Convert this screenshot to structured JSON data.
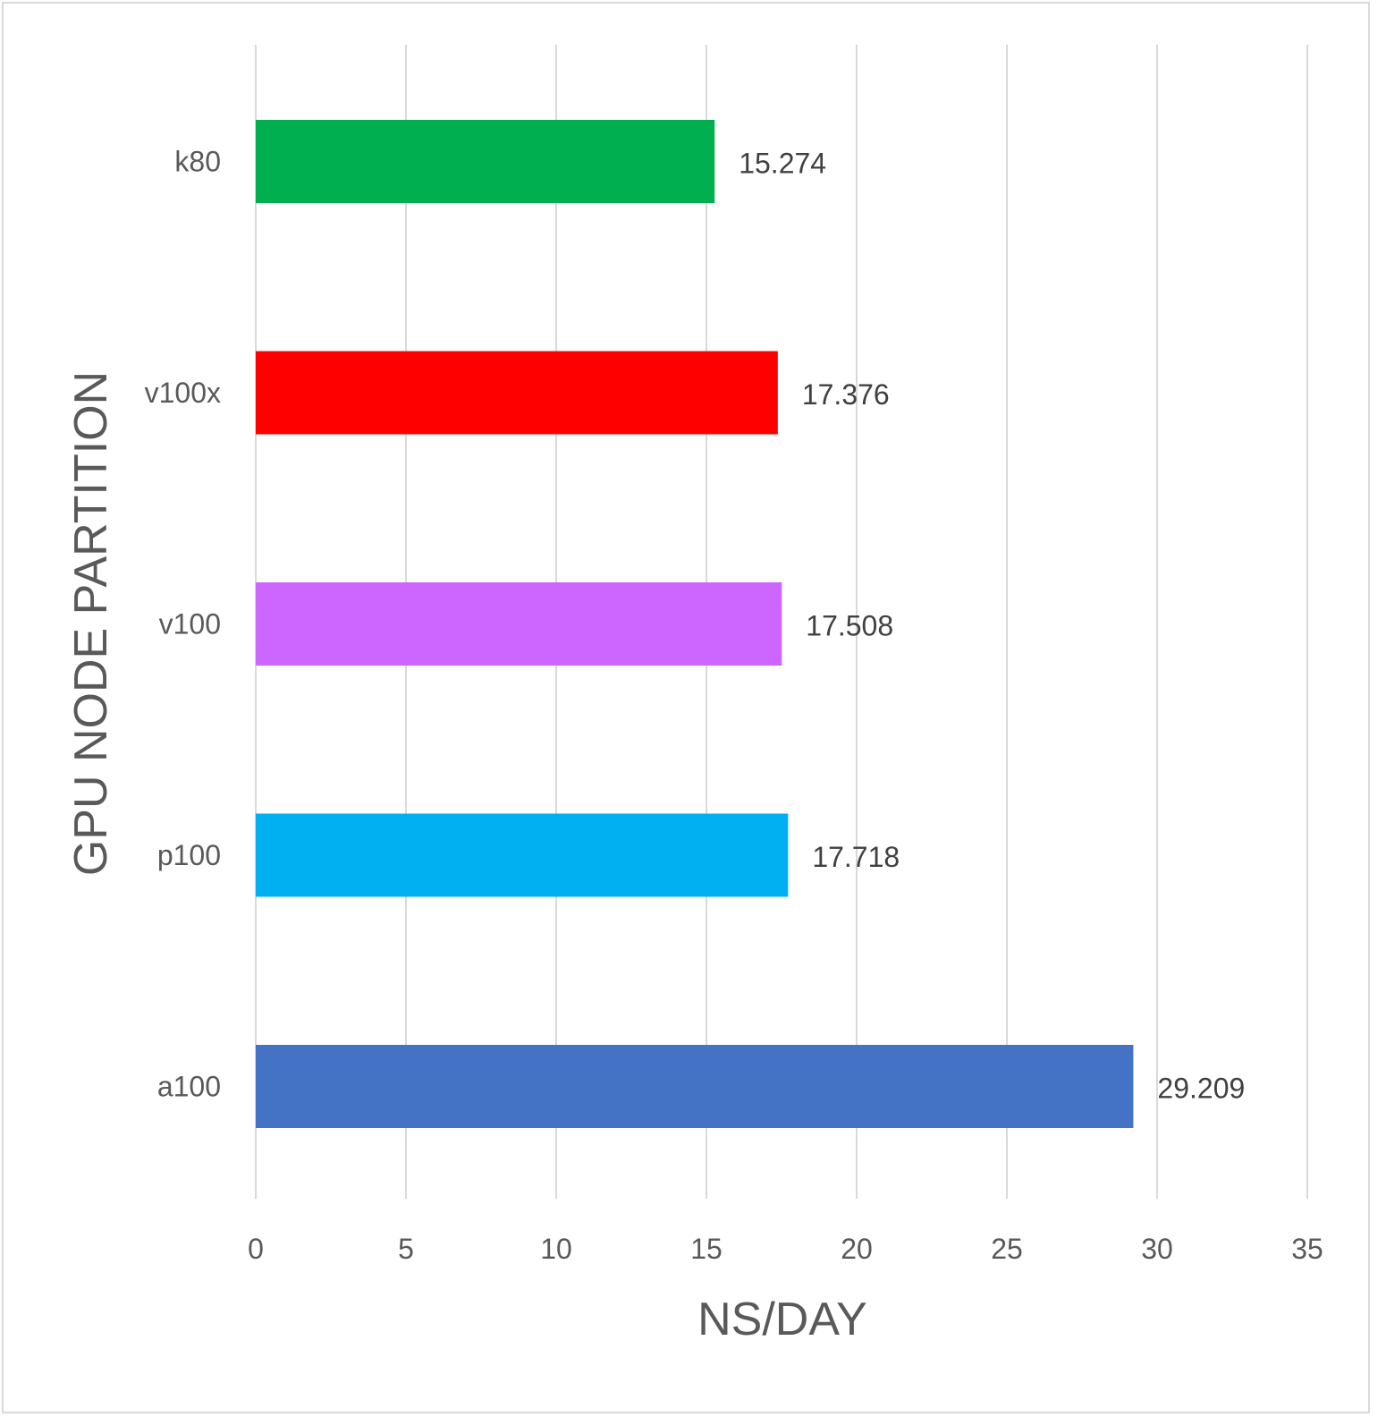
{
  "chart_data": {
    "type": "bar",
    "orientation": "horizontal",
    "title": "",
    "xlabel": "NS/DAY",
    "ylabel": "GPU NODE PARTITION",
    "categories": [
      "k80",
      "v100x",
      "v100",
      "p100",
      "a100"
    ],
    "values": [
      15.274,
      17.376,
      17.508,
      17.718,
      29.209
    ],
    "data_labels": [
      "15.274",
      "17.376",
      "17.508",
      "17.718",
      "29.209"
    ],
    "colors": [
      "#00b050",
      "#ff0000",
      "#cc66ff",
      "#00b0f0",
      "#4472c4"
    ],
    "xlim": [
      0,
      35
    ],
    "xticks": [
      "0",
      "5",
      "10",
      "15",
      "20",
      "25",
      "30",
      "35"
    ],
    "grid": true,
    "legend": "none"
  }
}
